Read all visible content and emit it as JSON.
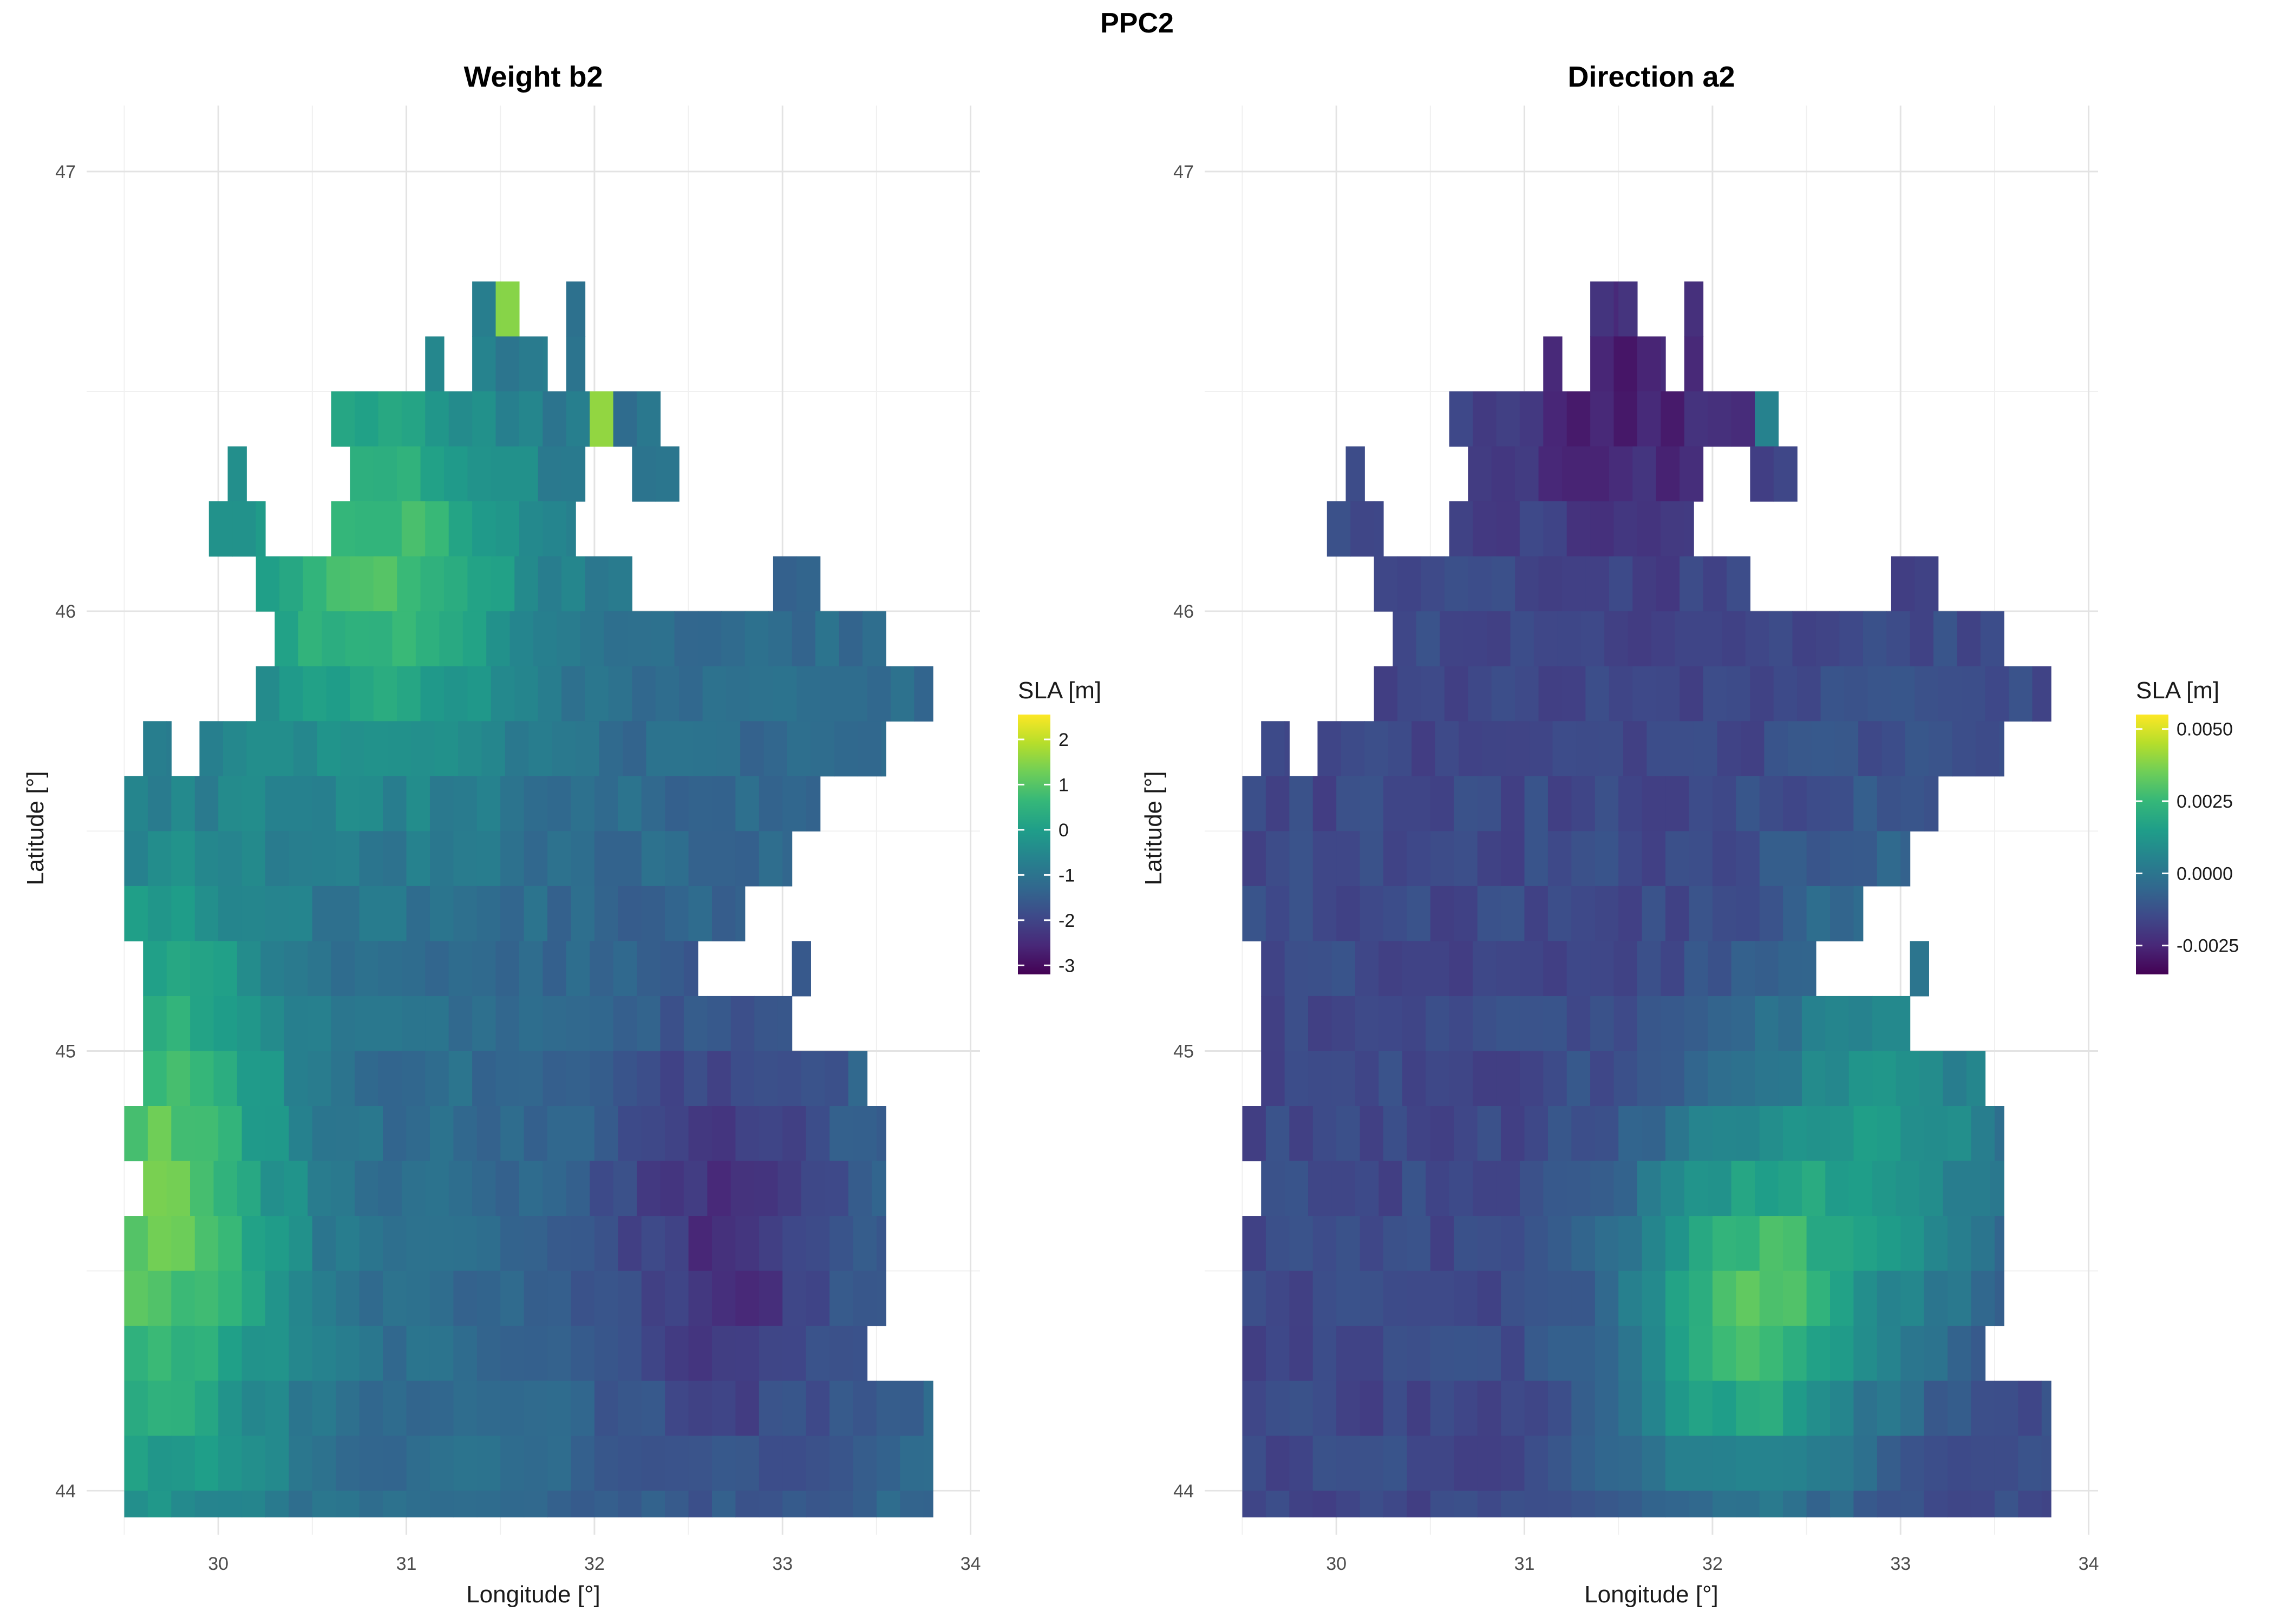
{
  "figure": {
    "title": "PPC2"
  },
  "colors": {
    "viridis": [
      "#440154",
      "#482878",
      "#3e4989",
      "#31688e",
      "#26828e",
      "#1f9e89",
      "#35b779",
      "#6ece58",
      "#b5de2b",
      "#fde725"
    ],
    "grid_major": "#e3e3e3",
    "grid_minor": "#f0f0f0",
    "background": "#ffffff"
  },
  "chart_data": [
    {
      "type": "heatmap",
      "title": "Weight b2",
      "xlabel": "Longitude [°]",
      "ylabel": "Latitude [°]",
      "xlim": [
        29.3,
        34.05
      ],
      "ylim": [
        43.9,
        47.15
      ],
      "xticks": [
        30,
        31,
        32,
        33,
        34
      ],
      "yticks": [
        44,
        45,
        46,
        47
      ],
      "grid": true,
      "cell_size": [
        0.125,
        0.125
      ],
      "legend": {
        "title": "SLA [m]",
        "position": "right",
        "min": -3.2,
        "max": 2.55,
        "ticks": [
          2,
          1,
          0,
          -1,
          -2,
          -3
        ]
      },
      "pattern": "base_plus_plume",
      "base": -1.2,
      "plumes": [
        {
          "lon": 29.65,
          "lat": 44.65,
          "amp": 2.4,
          "sx": 0.5,
          "sy": 0.5
        },
        {
          "lon": 30.85,
          "lat": 46.1,
          "amp": 2.0,
          "sx": 0.6,
          "sy": 0.35
        },
        {
          "lon": 32.7,
          "lat": 44.55,
          "amp": -1.2,
          "sx": 0.5,
          "sy": 0.4
        }
      ],
      "overrides": [
        {
          "lon": 32.25,
          "lat": 46.55,
          "value": 2.5
        },
        {
          "lon": 32.0,
          "lat": 46.45,
          "value": 1.6
        },
        {
          "lon": 31.5,
          "lat": 46.75,
          "value": 1.5
        }
      ]
    },
    {
      "type": "heatmap",
      "title": "Direction a2",
      "xlabel": "Longitude [°]",
      "ylabel": "Latitude [°]",
      "xlim": [
        29.3,
        34.05
      ],
      "ylim": [
        43.9,
        47.15
      ],
      "xticks": [
        30,
        31,
        32,
        33,
        34
      ],
      "yticks": [
        44,
        45,
        46,
        47
      ],
      "grid": true,
      "cell_size": [
        0.125,
        0.125
      ],
      "legend": {
        "title": "SLA [m]",
        "position": "right",
        "min": -0.0035,
        "max": 0.0055,
        "ticks": [
          0.005,
          0.0025,
          0.0,
          -0.0025
        ],
        "tick_labels": [
          "0.0050",
          "0.0025",
          "0.0000",
          "-0.0025"
        ]
      },
      "pattern": "base_plus_plume",
      "base": -0.0015,
      "plumes": [
        {
          "lon": 32.15,
          "lat": 44.4,
          "amp": 0.0042,
          "sx": 0.45,
          "sy": 0.3
        },
        {
          "lon": 33.0,
          "lat": 44.85,
          "amp": 0.0025,
          "sx": 0.5,
          "sy": 0.4
        },
        {
          "lon": 31.6,
          "lat": 46.5,
          "amp": -0.0012,
          "sx": 0.6,
          "sy": 0.25
        }
      ],
      "overrides": [
        {
          "lon": 32.25,
          "lat": 46.55,
          "value": -0.0033
        },
        {
          "lon": 32.25,
          "lat": 46.4,
          "value": 0.0005
        }
      ]
    }
  ]
}
